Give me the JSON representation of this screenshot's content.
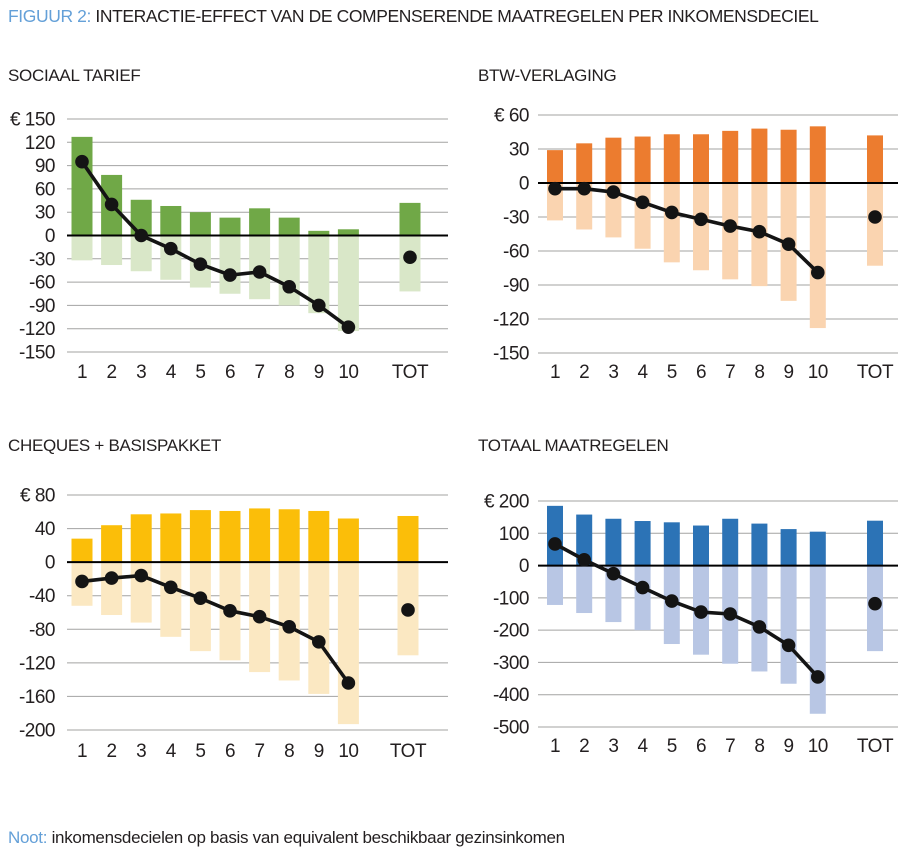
{
  "header": {
    "label": "FIGUUR 2:",
    "title": "INTERACTIE-EFFECT VAN DE COMPENSERENDE MAATREGELEN PER INKOMENSDECIEL"
  },
  "note": {
    "label": "Noot:",
    "text": "inkomensdecielen op basis van equivalent beschikbaar gezinsinkomen"
  },
  "colors": {
    "accent": "#64a0d8",
    "grid": "#a3a3a2",
    "zero_line": "#000000",
    "line_dots": "#141414",
    "text": "#231f20"
  },
  "chart_data": [
    {
      "type": "bar",
      "title": "SOCIAAL TARIEF",
      "currency": "€",
      "categories": [
        "1",
        "2",
        "3",
        "4",
        "5",
        "6",
        "7",
        "8",
        "9",
        "10",
        "TOT"
      ],
      "pos": [
        127,
        78,
        46,
        38,
        30,
        23,
        35,
        23,
        6,
        8,
        42
      ],
      "neg": [
        -32,
        -38,
        -46,
        -57,
        -67,
        -75,
        -82,
        -90,
        -100,
        -123,
        -72
      ],
      "dot": [
        95,
        40,
        0,
        -17,
        -37,
        -51,
        -47,
        -66,
        -90,
        -118,
        -28
      ],
      "ylim": [
        -150,
        150
      ],
      "ystep": 30,
      "grid": true,
      "legend": false,
      "colors": {
        "pos": "#70A847",
        "neg": "#D9E7C8"
      }
    },
    {
      "type": "bar",
      "title": "BTW-VERLAGING",
      "currency": "€",
      "categories": [
        "1",
        "2",
        "3",
        "4",
        "5",
        "6",
        "7",
        "8",
        "9",
        "10",
        "TOT"
      ],
      "pos": [
        29,
        35,
        40,
        41,
        43,
        43,
        46,
        48,
        47,
        50,
        42
      ],
      "neg": [
        -33,
        -41,
        -48,
        -58,
        -70,
        -77,
        -85,
        -91,
        -104,
        -128,
        -73
      ],
      "dot": [
        -5,
        -5,
        -8,
        -17,
        -26,
        -32,
        -38,
        -43,
        -54,
        -79,
        -30
      ],
      "ylim": [
        -150,
        60
      ],
      "ystep": 30,
      "grid": true,
      "legend": false,
      "colors": {
        "pos": "#EC7C2F",
        "neg": "#FAD4B0"
      }
    },
    {
      "type": "bar",
      "title": "CHEQUES + BASISPAKKET",
      "currency": "€",
      "categories": [
        "1",
        "2",
        "3",
        "4",
        "5",
        "6",
        "7",
        "8",
        "9",
        "10",
        "TOT"
      ],
      "pos": [
        28,
        44,
        57,
        58,
        62,
        61,
        64,
        63,
        61,
        52,
        55
      ],
      "neg": [
        -52,
        -63,
        -72,
        -89,
        -106,
        -117,
        -131,
        -141,
        -157,
        -193,
        -111
      ],
      "dot": [
        -23,
        -19,
        -16,
        -30,
        -43,
        -58,
        -65,
        -77,
        -95,
        -144,
        -57
      ],
      "ylim": [
        -200,
        80
      ],
      "ystep": 40,
      "grid": true,
      "legend": false,
      "colors": {
        "pos": "#FBBE09",
        "neg": "#FBE8C2"
      }
    },
    {
      "type": "bar",
      "title": "TOTAAL MAATREGELEN",
      "currency": "€",
      "categories": [
        "1",
        "2",
        "3",
        "4",
        "5",
        "6",
        "7",
        "8",
        "9",
        "10",
        "TOT"
      ],
      "pos": [
        185,
        158,
        145,
        138,
        134,
        124,
        145,
        130,
        113,
        105,
        139
      ],
      "neg": [
        -122,
        -147,
        -175,
        -200,
        -243,
        -276,
        -304,
        -328,
        -366,
        -459,
        -265
      ],
      "dot": [
        67,
        18,
        -25,
        -68,
        -110,
        -144,
        -150,
        -190,
        -247,
        -345,
        -118
      ],
      "ylim": [
        -500,
        200
      ],
      "ystep": 100,
      "grid": true,
      "legend": false,
      "colors": {
        "pos": "#2C73B6",
        "neg": "#B8C6E4"
      }
    }
  ]
}
